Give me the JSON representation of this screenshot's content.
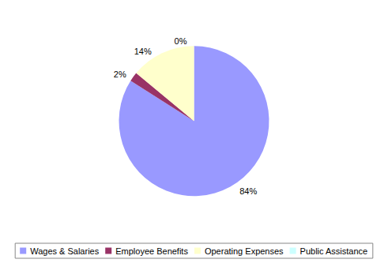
{
  "chart_data": {
    "type": "pie",
    "categories": [
      "Wages & Salaries",
      "Employee Benefits",
      "Operating Expenses",
      "Public Assistance"
    ],
    "values": [
      84,
      2,
      14,
      0
    ],
    "value_labels": [
      "84%",
      "2%",
      "14%",
      "0%"
    ],
    "colors": [
      "#9999ff",
      "#993366",
      "#ffffcc",
      "#ccffff"
    ],
    "data_labels": true,
    "legend": "bottom"
  }
}
